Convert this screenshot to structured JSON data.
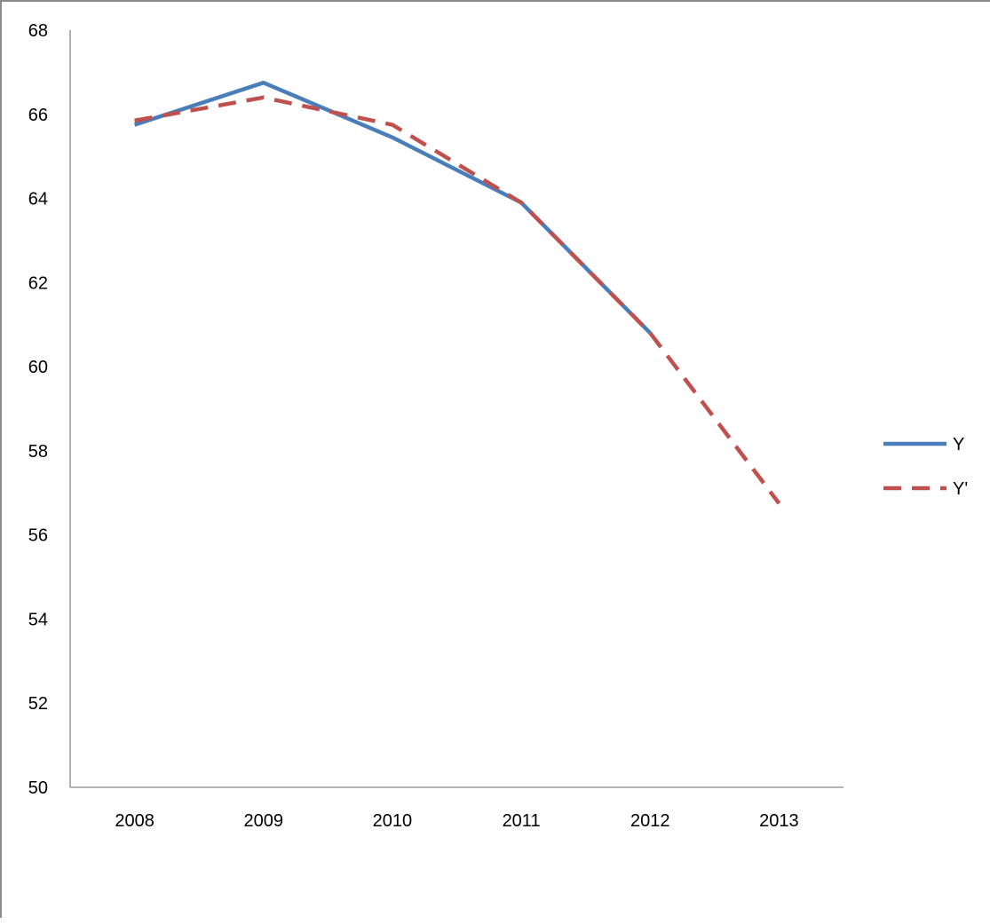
{
  "chart_data": {
    "type": "line",
    "categories": [
      "2008",
      "2009",
      "2010",
      "2011",
      "2012",
      "2013"
    ],
    "ylim": [
      50,
      68
    ],
    "yticks": [
      50,
      52,
      54,
      56,
      58,
      60,
      62,
      64,
      66,
      68
    ],
    "series": [
      {
        "name": "Y",
        "values": [
          65.75,
          66.75,
          65.45,
          63.9,
          60.8,
          null
        ],
        "color": "#4a7ebb",
        "style": "solid"
      },
      {
        "name": "Y'",
        "values": [
          65.85,
          66.4,
          65.75,
          63.9,
          60.8,
          56.75
        ],
        "color": "#c0504d",
        "style": "dashed"
      }
    ],
    "legend": "right",
    "grid": false
  }
}
